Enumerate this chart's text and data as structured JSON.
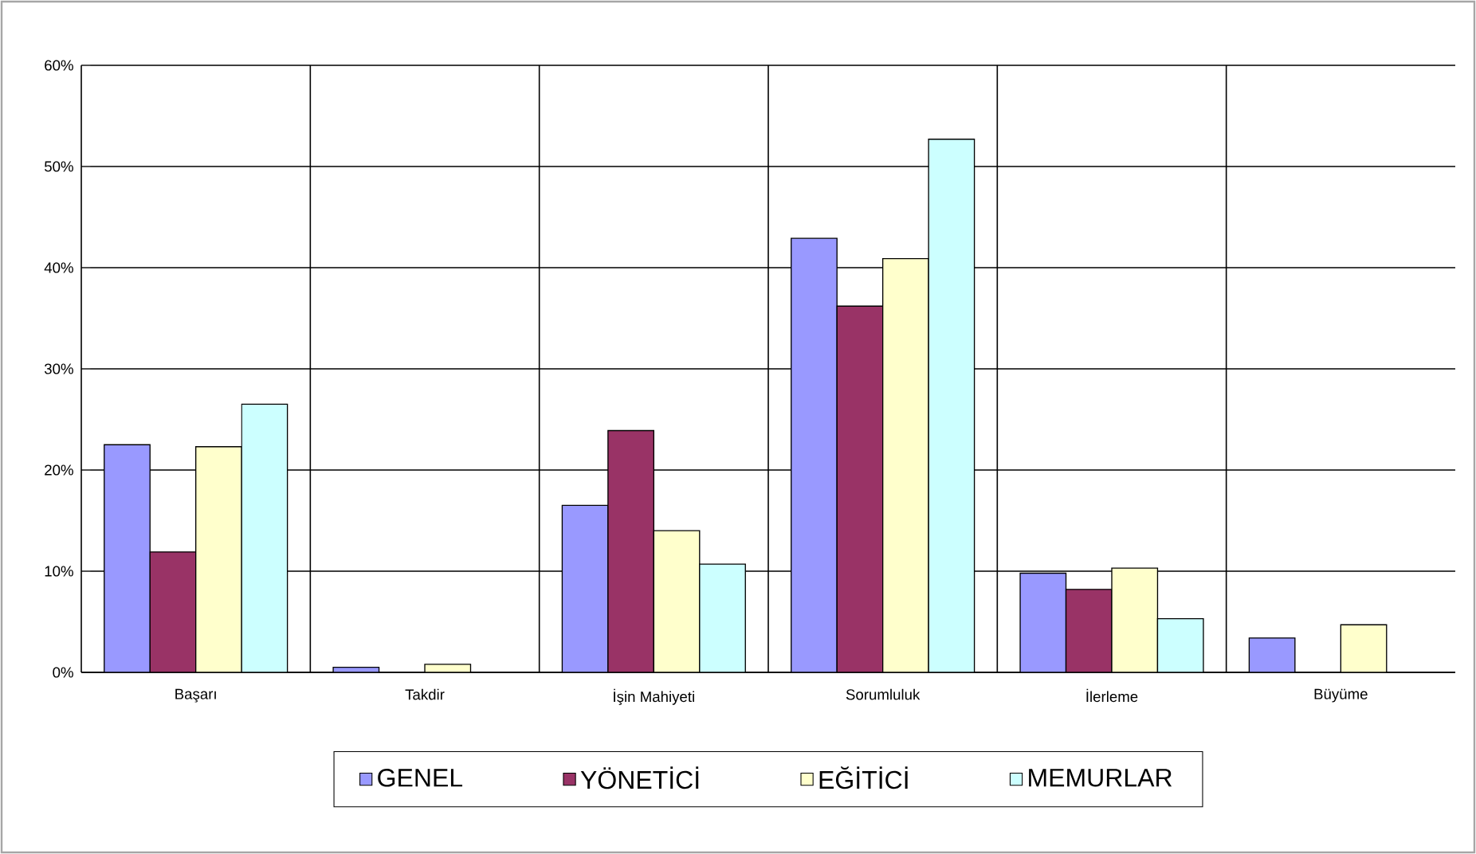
{
  "chart_data": {
    "type": "bar",
    "categories": [
      "Başarı",
      "Takdir",
      "İşin Mahiyeti",
      "Sorumluluk",
      "İlerleme",
      "Büyüme"
    ],
    "series": [
      {
        "name": "GENEL",
        "color": "#9999ff",
        "values": [
          22.5,
          0.5,
          16.5,
          42.9,
          9.8,
          3.4
        ]
      },
      {
        "name": "YÖNETİCİ",
        "color": "#993366",
        "values": [
          11.9,
          null,
          23.9,
          36.2,
          8.2,
          null
        ]
      },
      {
        "name": "EĞİTİCİ",
        "color": "#ffffcc",
        "values": [
          22.3,
          0.8,
          14.0,
          40.9,
          10.3,
          4.7
        ]
      },
      {
        "name": "MEMURLAR",
        "color": "#ccffff",
        "values": [
          26.5,
          null,
          10.7,
          52.7,
          5.3,
          null
        ]
      }
    ],
    "ylim": [
      0,
      60
    ],
    "yticks": [
      {
        "value": 0,
        "label": "0%"
      },
      {
        "value": 10,
        "label": "10%"
      },
      {
        "value": 20,
        "label": "20%"
      },
      {
        "value": 30,
        "label": "30%"
      },
      {
        "value": 40,
        "label": "40%"
      },
      {
        "value": 50,
        "label": "50%"
      },
      {
        "value": 60,
        "label": "60%"
      }
    ],
    "grid": true,
    "legend": "bottom"
  }
}
